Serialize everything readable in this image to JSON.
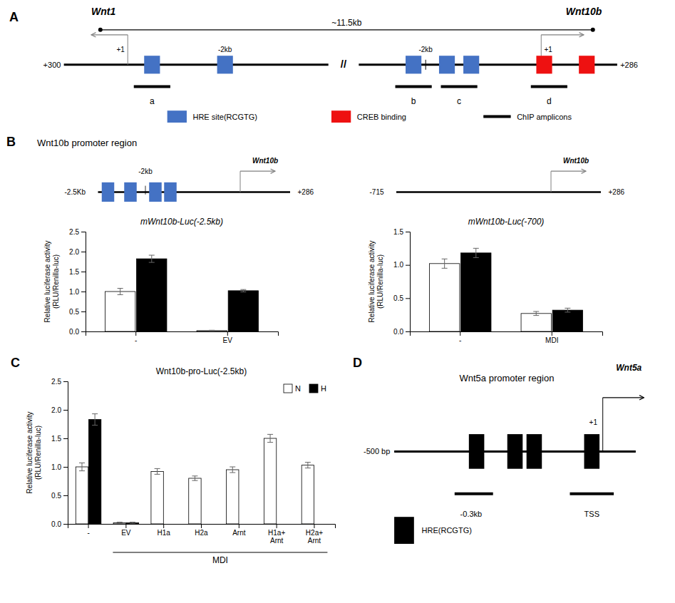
{
  "chart_data": [
    {
      "type": "diagram",
      "annotations": [
        "A",
        "~11.5kb",
        "//",
        "+300",
        "+286",
        "+1",
        "Wnt1",
        "+1",
        "Wnt10b",
        "-2kb",
        "-2kb",
        "a",
        "b",
        "c",
        "d",
        "HRE site(RCGTG)",
        "CREB binding",
        "ChIP amplicons"
      ],
      "colors": [
        "#4472C4",
        "#EE1111"
      ]
    },
    {
      "type": "diagram",
      "annotations": [
        "B",
        "Wnt10b promoter region",
        "Wnt10b",
        "-2.5Kb",
        "+286",
        "-2kb",
        "Wnt10b",
        "-715",
        "+286"
      ],
      "color": "#4472C4"
    },
    {
      "type": "bar",
      "title": "mWnt10b-Luc(-2.5kb)",
      "categories": [
        "-",
        "EV"
      ],
      "series": [
        {
          "color": "#FFFFFF",
          "values": [
            1.0,
            0.02
          ],
          "errors": [
            0.08,
            0.01
          ]
        },
        {
          "color": "#000000",
          "values": [
            1.82,
            1.02
          ],
          "errors": [
            0.09,
            0.03
          ]
        }
      ],
      "ylim": [
        0,
        2.5
      ],
      "yticks": [
        {
          "value": 0.0,
          "label": "0.0"
        },
        0.5,
        {
          "value": 1.0,
          "label": "1.0"
        },
        1.5,
        {
          "value": 2.0,
          "label": "2.0"
        },
        2.5
      ],
      "ylabel": "Relative luciferase activity\n(RLU/Renilla-luc)"
    },
    {
      "type": "bar",
      "title": "mWnt10b-Luc(-700)",
      "categories": [
        "-",
        "MDI"
      ],
      "series": [
        {
          "color": "#FFFFFF",
          "values": [
            1.02,
            0.27
          ],
          "errors": [
            0.07,
            0.03
          ]
        },
        {
          "color": "#000000",
          "values": [
            1.18,
            0.32
          ],
          "errors": [
            0.07,
            0.03
          ]
        }
      ],
      "ylim": [
        0,
        1.5
      ],
      "yticks": [
        {
          "value": 0.0,
          "label": "0.0"
        },
        0.5,
        {
          "value": 1.0,
          "label": "1.0"
        },
        1.5
      ],
      "ylabel": "Relative luciferase activity\n(RLU/Renilla-luc)"
    },
    {
      "type": "bar",
      "title": "Wnt10b-pro-Luc(-2.5kb)",
      "categories": [
        "-",
        "EV",
        "H1a",
        "H2a",
        "Arnt",
        "H1a+\nArnt",
        "H2a+\nArnt"
      ],
      "series": [
        {
          "name": "N",
          "color": "#FFFFFF",
          "values": [
            1.0,
            0.02,
            0.92,
            0.8,
            0.95,
            1.5,
            1.03
          ],
          "errors": [
            0.07,
            0.01,
            0.05,
            0.04,
            0.05,
            0.07,
            0.05
          ]
        },
        {
          "name": "H",
          "color": "#000000",
          "values": [
            1.83,
            0.02,
            null,
            null,
            null,
            null,
            null
          ],
          "errors": [
            0.1,
            0.01,
            null,
            null,
            null,
            null,
            null
          ]
        }
      ],
      "ylim": [
        0,
        2.5
      ],
      "yticks": [
        {
          "value": 0.0,
          "label": "0.0"
        },
        0.5,
        {
          "value": 1.0,
          "label": "1.0"
        },
        1.5,
        {
          "value": 2.0,
          "label": "2.0"
        },
        2.5
      ],
      "ylabel": "Relative luciferase activity\n(RLU/Renilla-luc)",
      "legend": "upper right",
      "annotations": [
        "C",
        "MDI"
      ]
    },
    {
      "type": "diagram",
      "annotations": [
        "D",
        "Wnt5a promoter region",
        "+1",
        "Wnt5a",
        "-500 bp",
        "-0.3kb",
        "TSS",
        "HRE(RCGTG)"
      ],
      "color": "#000000"
    }
  ]
}
